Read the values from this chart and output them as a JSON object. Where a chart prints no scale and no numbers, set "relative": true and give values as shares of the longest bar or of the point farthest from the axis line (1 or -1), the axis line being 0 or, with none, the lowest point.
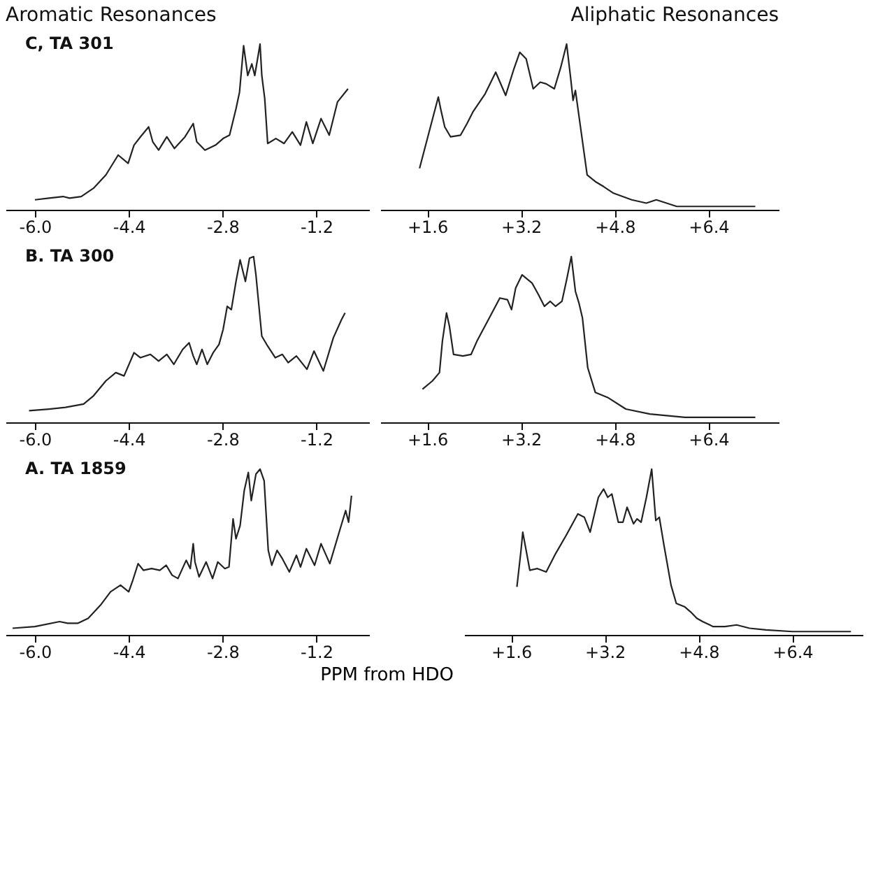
{
  "chart_data": [
    {
      "type": "line",
      "relative": true,
      "title": "Aromatic Resonances",
      "subtitle": "C, TA 301",
      "xlim": [
        -6.5,
        -0.3
      ],
      "xticks": [
        {
          "value": -6.0,
          "label": "-6.0"
        },
        {
          "value": -4.4,
          "label": "-4.4"
        },
        {
          "value": -2.8,
          "label": "-2.8"
        },
        {
          "value": -1.2,
          "label": "-1.2"
        }
      ],
      "line_style": "solid",
      "series": [
        {
          "color": "#222222",
          "x": [
            -6.0,
            -5.76,
            -5.52,
            -5.41,
            -5.21,
            -5.0,
            -4.79,
            -4.58,
            -4.41,
            -4.31,
            -4.2,
            -4.06,
            -3.99,
            -3.89,
            -3.75,
            -3.62,
            -3.44,
            -3.3,
            -3.24,
            -3.1,
            -2.92,
            -2.79,
            -2.68,
            -2.57,
            -2.51,
            -2.44,
            -2.37,
            -2.3,
            -2.25,
            -2.16,
            -2.13,
            -2.08,
            -2.03,
            -1.89,
            -1.75,
            -1.61,
            -1.47,
            -1.37,
            -1.26,
            -1.12,
            -0.98,
            -0.84,
            -0.66
          ],
          "values": [
            0.06,
            0.07,
            0.08,
            0.07,
            0.08,
            0.13,
            0.21,
            0.33,
            0.28,
            0.39,
            0.44,
            0.5,
            0.41,
            0.36,
            0.44,
            0.37,
            0.44,
            0.52,
            0.41,
            0.36,
            0.39,
            0.43,
            0.45,
            0.61,
            0.71,
            0.99,
            0.81,
            0.88,
            0.81,
            1.0,
            0.81,
            0.67,
            0.4,
            0.43,
            0.4,
            0.47,
            0.39,
            0.53,
            0.4,
            0.55,
            0.45,
            0.65,
            0.73
          ]
        }
      ]
    },
    {
      "type": "line",
      "relative": true,
      "title": "Aliphatic Resonances",
      "xlim": [
        0.8,
        7.6
      ],
      "xticks": [
        {
          "value": 1.6,
          "label": "+1.6"
        },
        {
          "value": 3.2,
          "label": "+3.2"
        },
        {
          "value": 4.8,
          "label": "+4.8"
        },
        {
          "value": 6.4,
          "label": "+6.4"
        }
      ],
      "line_style": "solid",
      "series": [
        {
          "color": "#222222",
          "x": [
            1.47,
            1.79,
            1.83,
            1.9,
            2.0,
            2.17,
            2.28,
            2.38,
            2.59,
            2.77,
            2.94,
            3.08,
            3.18,
            3.29,
            3.41,
            3.53,
            3.63,
            3.77,
            3.88,
            3.98,
            4.05,
            4.09,
            4.13,
            4.33,
            4.47,
            4.61,
            4.78,
            5.09,
            5.34,
            5.51,
            5.86,
            6.4,
            7.2
          ],
          "values": [
            0.25,
            0.68,
            0.61,
            0.5,
            0.44,
            0.45,
            0.52,
            0.59,
            0.7,
            0.83,
            0.69,
            0.85,
            0.95,
            0.91,
            0.73,
            0.77,
            0.76,
            0.73,
            0.86,
            1.0,
            0.79,
            0.66,
            0.72,
            0.21,
            0.17,
            0.14,
            0.1,
            0.06,
            0.04,
            0.06,
            0.02,
            0.02,
            0.02
          ]
        }
      ]
    },
    {
      "type": "line",
      "relative": true,
      "subtitle": "B. TA 300",
      "xlim": [
        -6.5,
        -0.3
      ],
      "xticks": [
        {
          "value": -6.0,
          "label": "-6.0"
        },
        {
          "value": -4.4,
          "label": "-4.4"
        },
        {
          "value": -2.8,
          "label": "-2.8"
        },
        {
          "value": -1.2,
          "label": "-1.2"
        }
      ],
      "line_style": "solid",
      "series": [
        {
          "color": "#222222",
          "x": [
            -6.1,
            -5.76,
            -5.48,
            -5.17,
            -5.0,
            -4.79,
            -4.62,
            -4.48,
            -4.31,
            -4.2,
            -4.03,
            -3.89,
            -3.75,
            -3.63,
            -3.48,
            -3.37,
            -3.3,
            -3.24,
            -3.15,
            -3.06,
            -2.96,
            -2.86,
            -2.79,
            -2.72,
            -2.65,
            -2.57,
            -2.5,
            -2.41,
            -2.34,
            -2.27,
            -2.23,
            -2.13,
            -2.03,
            -1.9,
            -1.78,
            -1.68,
            -1.54,
            -1.36,
            -1.24,
            -1.08,
            -0.91,
            -0.77,
            -0.71
          ],
          "values": [
            0.07,
            0.08,
            0.09,
            0.11,
            0.16,
            0.25,
            0.3,
            0.28,
            0.42,
            0.39,
            0.41,
            0.37,
            0.41,
            0.35,
            0.44,
            0.48,
            0.4,
            0.35,
            0.44,
            0.35,
            0.42,
            0.47,
            0.56,
            0.7,
            0.68,
            0.85,
            0.98,
            0.85,
            0.99,
            1.0,
            0.89,
            0.52,
            0.46,
            0.39,
            0.41,
            0.36,
            0.4,
            0.32,
            0.43,
            0.31,
            0.51,
            0.62,
            0.66
          ]
        }
      ]
    },
    {
      "type": "line",
      "relative": true,
      "xlim": [
        0.8,
        7.6
      ],
      "xticks": [
        {
          "value": 1.6,
          "label": "+1.6"
        },
        {
          "value": 3.2,
          "label": "+3.2"
        },
        {
          "value": 4.8,
          "label": "+4.8"
        },
        {
          "value": 6.4,
          "label": "+6.4"
        }
      ],
      "line_style": "solid",
      "series": [
        {
          "color": "#222222",
          "x": [
            1.52,
            1.69,
            1.81,
            1.86,
            1.93,
            1.98,
            2.05,
            2.21,
            2.35,
            2.45,
            2.66,
            2.84,
            2.97,
            3.04,
            3.11,
            3.22,
            3.39,
            3.5,
            3.6,
            3.7,
            3.79,
            3.9,
            3.98,
            4.06,
            4.13,
            4.19,
            4.25,
            4.34,
            4.4,
            4.47,
            4.68,
            4.99,
            5.4,
            6.0,
            7.2
          ],
          "values": [
            0.2,
            0.25,
            0.3,
            0.49,
            0.66,
            0.58,
            0.41,
            0.4,
            0.41,
            0.49,
            0.63,
            0.75,
            0.74,
            0.68,
            0.81,
            0.89,
            0.84,
            0.77,
            0.7,
            0.73,
            0.7,
            0.73,
            0.86,
            1.0,
            0.79,
            0.72,
            0.63,
            0.33,
            0.26,
            0.18,
            0.15,
            0.08,
            0.05,
            0.03,
            0.03
          ]
        }
      ]
    },
    {
      "type": "line",
      "relative": true,
      "subtitle": "A. TA 1859",
      "xlabel": "PPM from HDO",
      "xlim": [
        -6.5,
        -0.3
      ],
      "xticks": [
        {
          "value": -6.0,
          "label": "-6.0"
        },
        {
          "value": -4.4,
          "label": "-4.4"
        },
        {
          "value": -2.8,
          "label": "-2.8"
        },
        {
          "value": -1.2,
          "label": "-1.2"
        }
      ],
      "line_style": "solid",
      "series": [
        {
          "color": "#222222",
          "x": [
            -6.38,
            -6.0,
            -5.58,
            -5.44,
            -5.27,
            -5.09,
            -4.88,
            -4.71,
            -4.54,
            -4.4,
            -4.33,
            -4.24,
            -4.15,
            -4.01,
            -3.87,
            -3.76,
            -3.66,
            -3.56,
            -3.42,
            -3.35,
            -3.3,
            -3.27,
            -3.2,
            -3.08,
            -2.97,
            -2.88,
            -2.76,
            -2.69,
            -2.62,
            -2.57,
            -2.5,
            -2.43,
            -2.36,
            -2.31,
            -2.23,
            -2.16,
            -2.09,
            -2.02,
            -1.96,
            -1.87,
            -1.78,
            -1.66,
            -1.54,
            -1.47,
            -1.37,
            -1.23,
            -1.12,
            -0.97,
            -0.81,
            -0.7,
            -0.65,
            -0.6
          ],
          "values": [
            0.04,
            0.05,
            0.08,
            0.07,
            0.07,
            0.1,
            0.18,
            0.26,
            0.3,
            0.26,
            0.33,
            0.43,
            0.39,
            0.4,
            0.39,
            0.42,
            0.36,
            0.34,
            0.45,
            0.4,
            0.55,
            0.44,
            0.35,
            0.44,
            0.34,
            0.44,
            0.4,
            0.41,
            0.7,
            0.58,
            0.66,
            0.87,
            0.98,
            0.81,
            0.97,
            1.0,
            0.93,
            0.51,
            0.42,
            0.51,
            0.46,
            0.38,
            0.48,
            0.41,
            0.52,
            0.42,
            0.55,
            0.43,
            0.62,
            0.75,
            0.68,
            0.84
          ]
        }
      ]
    },
    {
      "type": "line",
      "relative": true,
      "xlim": [
        0.8,
        7.6
      ],
      "xticks": [
        {
          "value": 1.6,
          "label": "+1.6"
        },
        {
          "value": 3.2,
          "label": "+3.2"
        },
        {
          "value": 4.8,
          "label": "+4.8"
        },
        {
          "value": 6.4,
          "label": "+6.4"
        }
      ],
      "line_style": "solid",
      "series": [
        {
          "color": "#222222",
          "x": [
            1.7,
            1.77,
            1.8,
            1.92,
            2.05,
            2.2,
            2.36,
            2.54,
            2.74,
            2.85,
            2.95,
            3.09,
            3.18,
            3.25,
            3.32,
            3.43,
            3.51,
            3.58,
            3.69,
            3.75,
            3.82,
            3.91,
            4.0,
            4.07,
            4.13,
            4.21,
            4.33,
            4.42,
            4.56,
            4.66,
            4.77,
            4.87,
            5.05,
            5.25,
            5.45,
            5.67,
            5.95,
            6.4,
            7.4
          ],
          "values": [
            0.29,
            0.51,
            0.62,
            0.39,
            0.4,
            0.38,
            0.49,
            0.6,
            0.73,
            0.71,
            0.62,
            0.83,
            0.88,
            0.83,
            0.85,
            0.68,
            0.68,
            0.77,
            0.67,
            0.7,
            0.68,
            0.83,
            1.0,
            0.69,
            0.71,
            0.54,
            0.3,
            0.19,
            0.17,
            0.14,
            0.1,
            0.08,
            0.05,
            0.05,
            0.06,
            0.04,
            0.03,
            0.02,
            0.02
          ]
        }
      ]
    }
  ]
}
